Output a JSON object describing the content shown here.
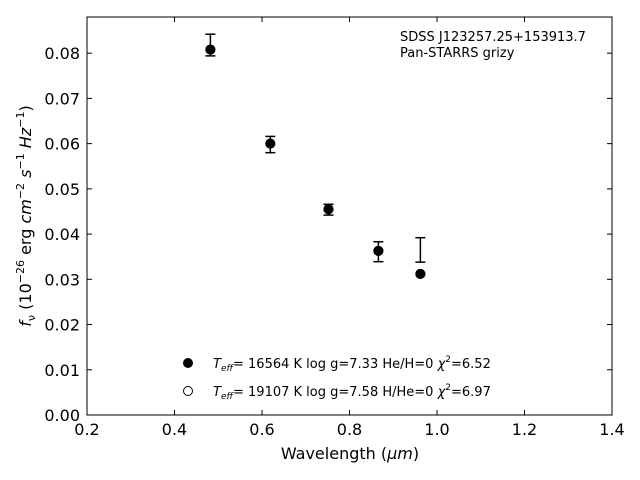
{
  "chart_data": {
    "type": "scatter",
    "annotation": [
      "SDSS J123257.25+153913.7",
      "Pan-STARRS grizy"
    ],
    "xlabel": {
      "prefix": "Wavelength (",
      "unit": "μm",
      "suffix": ")"
    },
    "ylabel": "f_ν (10^−26 erg cm^−2 s^−1 Hz^−1)",
    "xlim": [
      0.2,
      1.4
    ],
    "ylim": [
      0.0,
      0.088
    ],
    "xticks": [
      0.2,
      0.4,
      0.6,
      0.8,
      1.0,
      1.2,
      1.4
    ],
    "xtick_labels": [
      "0.2",
      "0.4",
      "0.6",
      "0.8",
      "1.0",
      "1.2",
      "1.4"
    ],
    "yticks": [
      0.0,
      0.01,
      0.02,
      0.03,
      0.04,
      0.05,
      0.06,
      0.07,
      0.08
    ],
    "ytick_labels": [
      "0.00",
      "0.01",
      "0.02",
      "0.03",
      "0.04",
      "0.05",
      "0.06",
      "0.07",
      "0.08"
    ],
    "grid": false,
    "legend_position": "bottom-center",
    "observed": {
      "x": [
        0.482,
        0.619,
        0.752,
        0.866,
        0.962
      ],
      "y": [
        0.0818,
        0.0598,
        0.0454,
        0.0361,
        0.0365
      ],
      "yerr": [
        0.0024,
        0.0018,
        0.0012,
        0.0022,
        0.0027
      ]
    },
    "series": [
      {
        "name": "T_eff= 16564 K  log g=7.33  He/H=0  χ²=6.52",
        "label": {
          "T": "T",
          "eff": "eff",
          "temp": "= 16564 K  log g=7.33  He/H=0  ",
          "chi": "χ",
          "chi_exp": "2",
          "chi_val": "=6.52"
        },
        "marker": "filled-circle",
        "x": [
          0.482,
          0.619,
          0.752,
          0.866,
          0.962
        ],
        "y": [
          0.0808,
          0.06,
          0.0455,
          0.0363,
          0.0312
        ]
      },
      {
        "name": "T_eff= 19107 K  log g=7.58  H/He=0  χ²=6.97",
        "label": {
          "T": "T",
          "eff": "eff",
          "temp": "= 19107 K  log g=7.58  H/He=0  ",
          "chi": "χ",
          "chi_exp": "2",
          "chi_val": "=6.97"
        },
        "marker": "open-circle",
        "x": [
          0.482,
          0.619,
          0.752,
          0.866,
          0.962
        ],
        "y": [
          0.0808,
          0.06,
          0.0455,
          0.0363,
          0.0312
        ]
      }
    ],
    "colors": {
      "marker": "#000000",
      "axes": "#000000",
      "background": "#ffffff"
    }
  }
}
